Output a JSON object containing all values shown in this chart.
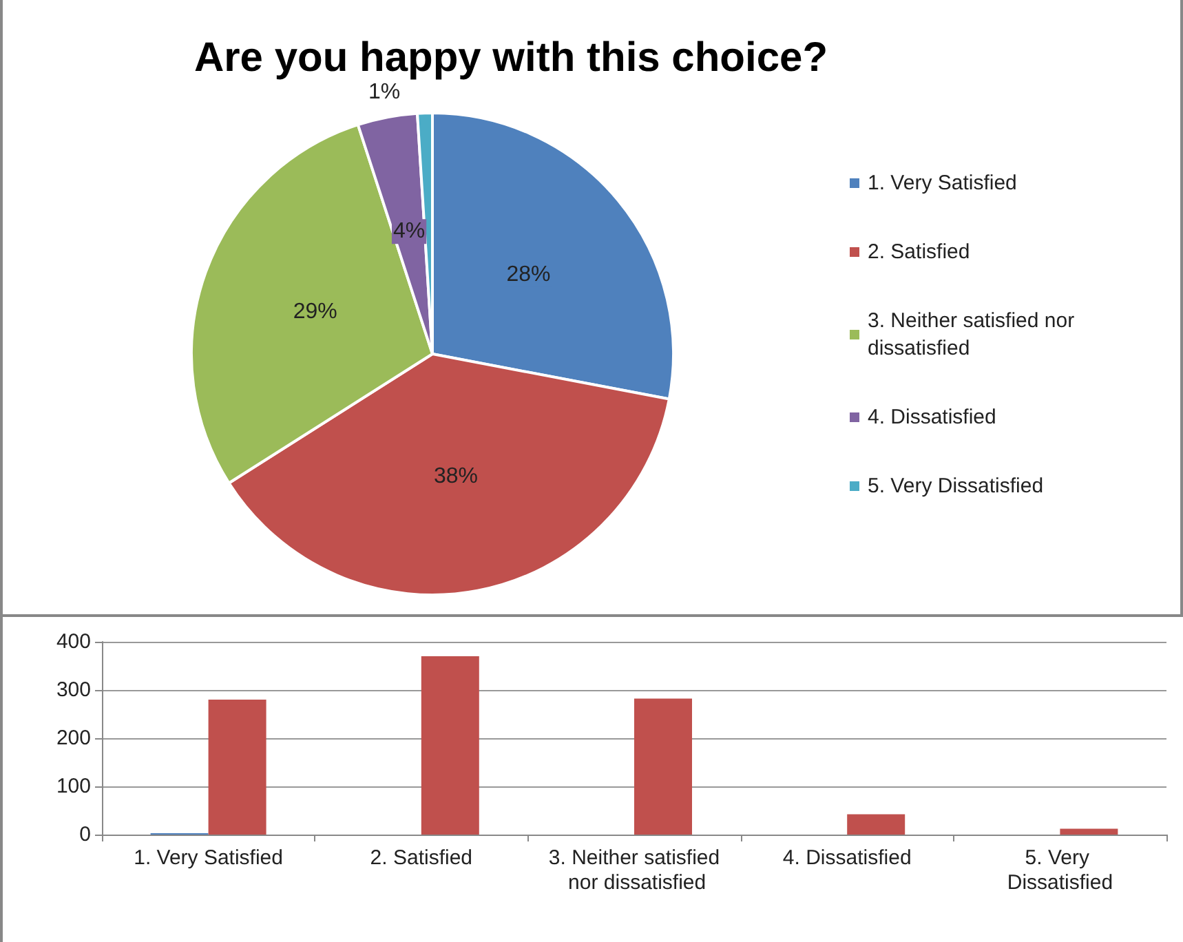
{
  "chart_data": [
    {
      "type": "pie",
      "title": "Are you happy with this choice?",
      "categories": [
        "1. Very Satisfied",
        "2. Satisfied",
        "3. Neither satisfied nor dissatisfied",
        "4. Dissatisfied",
        "5. Very Dissatisfied"
      ],
      "values": [
        28,
        38,
        29,
        4,
        1
      ],
      "colors": [
        "#4f81bd",
        "#c0504d",
        "#9bbb59",
        "#8064a2",
        "#4bacc6"
      ],
      "value_labels": [
        "28%",
        "38%",
        "29%",
        "4%",
        "1%"
      ],
      "legend": "right"
    },
    {
      "type": "bar",
      "categories": [
        "1. Very Satisfied",
        "2. Satisfied",
        "3. Neither satisfied nor dissatisfied",
        "4. Dissatisfied",
        "5. Very Dissatisfied"
      ],
      "series": [
        {
          "color": "#4f81bd",
          "values": [
            3,
            0,
            0,
            0,
            0
          ]
        },
        {
          "color": "#c0504d",
          "values": [
            280,
            370,
            282,
            42,
            12
          ]
        }
      ],
      "ylim": [
        0,
        400
      ],
      "yticks": [
        0,
        100,
        200,
        300,
        400
      ],
      "grid": "y",
      "legend": false
    }
  ]
}
